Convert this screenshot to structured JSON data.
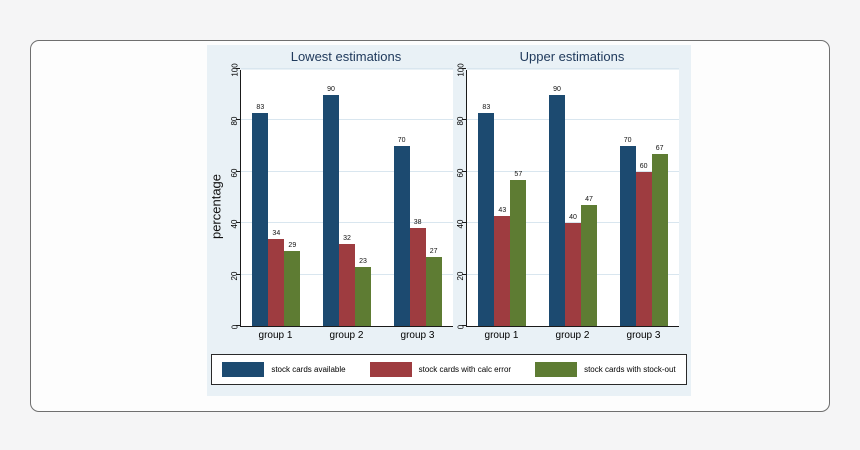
{
  "figure": {
    "ylabel": "percentage",
    "background": "#e9f1f6",
    "plot_background": "#ffffff",
    "gridline_color": "#d9e6ef",
    "legend": {
      "items": [
        {
          "label": "stock cards available",
          "color": "#1c4a70"
        },
        {
          "label": "stock cards with calc error",
          "color": "#9e3c40"
        },
        {
          "label": "stock cards with stock-out",
          "color": "#5e7c33"
        }
      ]
    }
  },
  "chart_data": [
    {
      "type": "bar",
      "title": "Lowest estimations",
      "categories": [
        "group 1",
        "group 2",
        "group 3"
      ],
      "series": [
        {
          "name": "stock cards available",
          "color": "#1c4a70",
          "values": [
            83,
            90,
            70
          ]
        },
        {
          "name": "stock cards with calc error",
          "color": "#9e3c40",
          "values": [
            34,
            32,
            38
          ]
        },
        {
          "name": "stock cards with stock-out",
          "color": "#5e7c33",
          "values": [
            29,
            23,
            27
          ]
        }
      ],
      "ylabel": "percentage",
      "xlabel": "",
      "ylim": [
        0,
        100
      ],
      "yticks": [
        0,
        20,
        40,
        60,
        80,
        100
      ],
      "grid": true,
      "legend_position": "bottom"
    },
    {
      "type": "bar",
      "title": "Upper estimations",
      "categories": [
        "group 1",
        "group 2",
        "group 3"
      ],
      "series": [
        {
          "name": "stock cards available",
          "color": "#1c4a70",
          "values": [
            83,
            90,
            70
          ]
        },
        {
          "name": "stock cards with calc error",
          "color": "#9e3c40",
          "values": [
            43,
            40,
            60
          ]
        },
        {
          "name": "stock cards with stock-out",
          "color": "#5e7c33",
          "values": [
            57,
            47,
            67
          ]
        }
      ],
      "ylabel": "",
      "xlabel": "",
      "ylim": [
        0,
        100
      ],
      "yticks": [
        0,
        20,
        40,
        60,
        80,
        100
      ],
      "grid": true,
      "legend_position": "bottom"
    }
  ]
}
